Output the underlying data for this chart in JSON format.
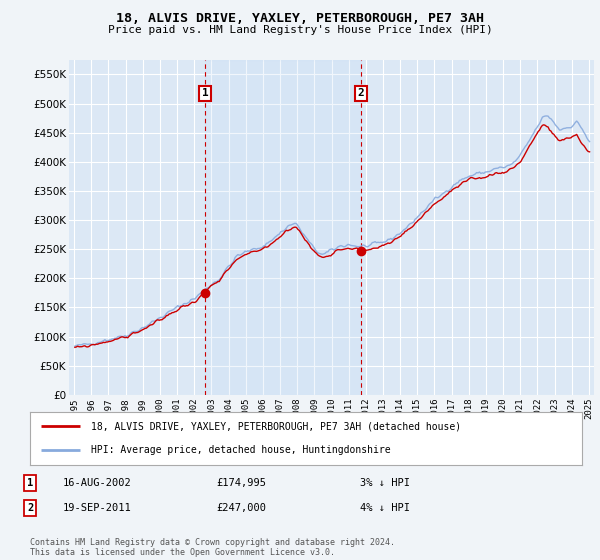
{
  "title": "18, ALVIS DRIVE, YAXLEY, PETERBOROUGH, PE7 3AH",
  "subtitle": "Price paid vs. HM Land Registry's House Price Index (HPI)",
  "legend_line1": "18, ALVIS DRIVE, YAXLEY, PETERBOROUGH, PE7 3AH (detached house)",
  "legend_line2": "HPI: Average price, detached house, Huntingdonshire",
  "annotation1_date": "16-AUG-2002",
  "annotation1_price": "£174,995",
  "annotation1_hpi": "3% ↓ HPI",
  "annotation2_date": "19-SEP-2011",
  "annotation2_price": "£247,000",
  "annotation2_hpi": "4% ↓ HPI",
  "footnote": "Contains HM Land Registry data © Crown copyright and database right 2024.\nThis data is licensed under the Open Government Licence v3.0.",
  "fig_bg_color": "#f0f4f8",
  "plot_bg_color": "#dce8f5",
  "shade_bg_color": "#e8f2fb",
  "grid_color": "#ffffff",
  "red_line_color": "#cc0000",
  "blue_line_color": "#88aadd",
  "vline_color": "#cc0000",
  "sale1_x": 2002.625,
  "sale1_y": 174995,
  "sale2_x": 2011.72,
  "sale2_y": 247000,
  "ylim": [
    0,
    575000
  ],
  "xlim": [
    1994.7,
    2025.3
  ],
  "yticks": [
    0,
    50000,
    100000,
    150000,
    200000,
    250000,
    300000,
    350000,
    400000,
    450000,
    500000,
    550000
  ],
  "xticks": [
    1995,
    1996,
    1997,
    1998,
    1999,
    2000,
    2001,
    2002,
    2003,
    2004,
    2005,
    2006,
    2007,
    2008,
    2009,
    2010,
    2011,
    2012,
    2013,
    2014,
    2015,
    2016,
    2017,
    2018,
    2019,
    2020,
    2021,
    2022,
    2023,
    2024,
    2025
  ]
}
